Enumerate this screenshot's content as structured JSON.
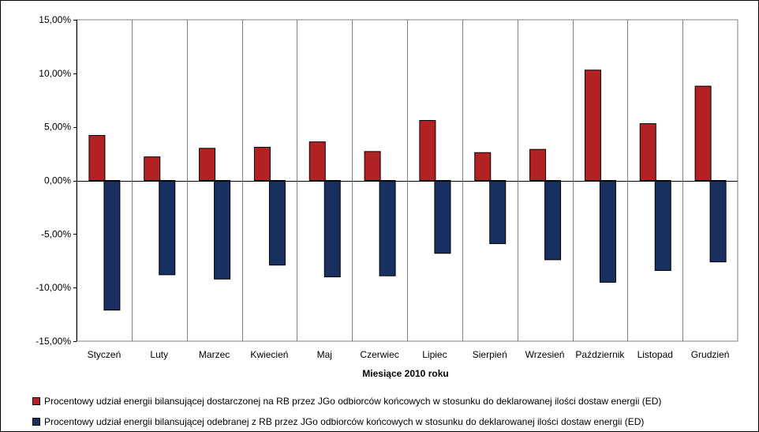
{
  "chart_data": {
    "type": "bar",
    "categories": [
      "Styczeń",
      "Luty",
      "Marzec",
      "Kwiecień",
      "Maj",
      "Czerwiec",
      "Lipiec",
      "Sierpień",
      "Wrzesień",
      "Październik",
      "Listopad",
      "Grudzień"
    ],
    "series": [
      {
        "name": "Procentowy udział energii bilansującej dostarczonej na RB przez JGo odbiorców końcowych w stosunku do deklarowanej ilości dostaw energii (ED)",
        "color": "#B22222",
        "values": [
          4.2,
          2.2,
          3.0,
          3.1,
          3.6,
          2.7,
          5.6,
          2.6,
          2.9,
          10.3,
          5.3,
          8.8
        ]
      },
      {
        "name": "Procentowy udział energii bilansującej odebranej z RB przez JGo odbiorców końcowych w stosunku do deklarowanej ilości dostaw energii (ED)",
        "color": "#17305F",
        "values": [
          -12.1,
          -8.8,
          -9.2,
          -7.9,
          -9.0,
          -8.9,
          -6.8,
          -5.9,
          -7.4,
          -9.5,
          -8.4,
          -7.6
        ]
      }
    ],
    "yticks": [
      "15,00%",
      "10,00%",
      "5,00%",
      "0,00%",
      "-5,00%",
      "-10,00%",
      "-15,00%"
    ],
    "ylim": [
      -15,
      15
    ],
    "xlabel": "Miesiące 2010  roku",
    "ylabel": "",
    "grid": "vertical",
    "legend_position": "bottom"
  }
}
